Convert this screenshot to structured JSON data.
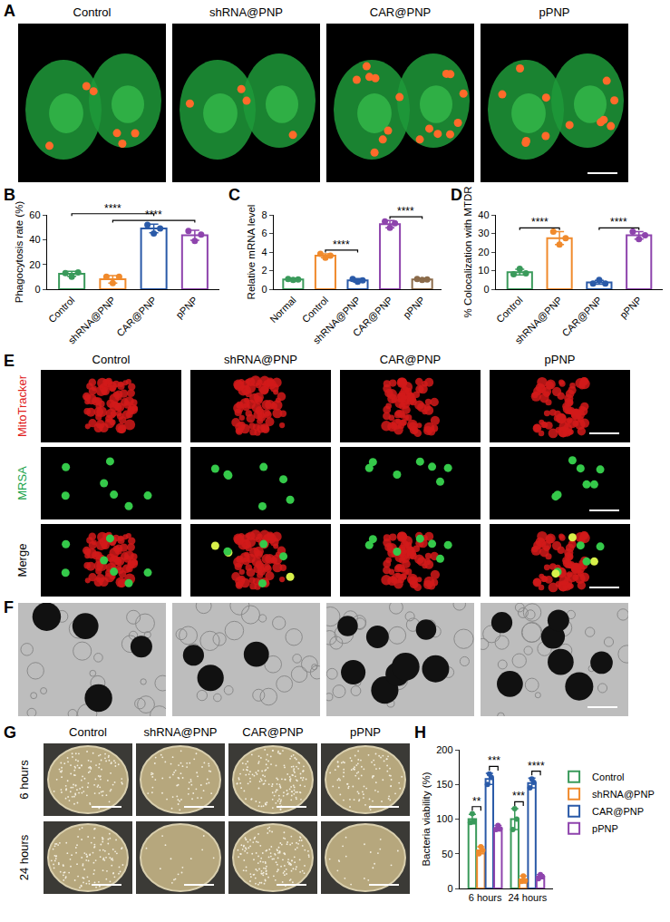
{
  "panels": {
    "A": {
      "letter": "A",
      "columns": [
        "Control",
        "shRNA@PNP",
        "CAR@PNP",
        "pPNP"
      ]
    },
    "E": {
      "letter": "E",
      "columns": [
        "Control",
        "shRNA@PNP",
        "CAR@PNP",
        "pPNP"
      ],
      "rows": [
        {
          "text": "MitoTracker",
          "color": "#e0201b"
        },
        {
          "text": "MRSA",
          "color": "#1aa34a"
        },
        {
          "text": "Merge",
          "color": "#000000"
        }
      ]
    },
    "F": {
      "letter": "F",
      "columns": [
        "Control",
        "shRNA@PNP",
        "CAR@PNP",
        "pPNP"
      ]
    },
    "G": {
      "letter": "G",
      "columns": [
        "Control",
        "shRNA@PNP",
        "CAR@PNP",
        "pPNP"
      ],
      "rows": [
        {
          "text": "6 hours",
          "color": "#000000"
        },
        {
          "text": "24 hours",
          "color": "#000000"
        }
      ]
    }
  },
  "chart_data": [
    {
      "letter": "B",
      "type": "bar",
      "y_label": "Phagocytosis rate (%)",
      "categories": [
        "Control",
        "shRNA@PNP",
        "CAR@PNP",
        "pPNP"
      ],
      "values": [
        12.5,
        8,
        49,
        43.5
      ],
      "errors": [
        2,
        3,
        3.5,
        4
      ],
      "points": [
        [
          13,
          10,
          13.5
        ],
        [
          10,
          5,
          10
        ],
        [
          52,
          45,
          49
        ],
        [
          47,
          39,
          44
        ]
      ],
      "colors": [
        "#3a9a5b",
        "#f08a2c",
        "#2a5aa8",
        "#8e44ad"
      ],
      "ylim": [
        0,
        60
      ],
      "yticks": [
        0,
        20,
        40,
        60
      ],
      "comparisons": [
        {
          "from": 1,
          "to": 3,
          "label": "****"
        },
        {
          "from": 0,
          "to": 2,
          "label": "****"
        }
      ]
    },
    {
      "letter": "C",
      "type": "bar",
      "y_label": "Relative mRNA level",
      "categories": [
        "Normal",
        "Control",
        "shRNA@PNP",
        "CAR@PNP",
        "pPNP"
      ],
      "values": [
        1.05,
        3.6,
        0.95,
        7.0,
        1.05
      ],
      "errors": [
        0.1,
        0.2,
        0.2,
        0.4,
        0.1
      ],
      "points": [
        [
          1.1,
          1.0,
          1.05
        ],
        [
          3.8,
          3.4,
          3.6
        ],
        [
          1.1,
          0.8,
          0.95
        ],
        [
          7.3,
          6.6,
          7.1
        ],
        [
          1.1,
          1.0,
          1.05
        ]
      ],
      "colors": [
        "#3a9a5b",
        "#f08a2c",
        "#2a5aa8",
        "#8e44ad",
        "#8b6b4a"
      ],
      "ylim": [
        0,
        8
      ],
      "yticks": [
        0,
        2,
        4,
        6,
        8
      ],
      "comparisons": [
        {
          "from": 1,
          "to": 2,
          "label": "****"
        },
        {
          "from": 3,
          "to": 4,
          "label": "****"
        }
      ]
    },
    {
      "letter": "D",
      "type": "bar",
      "y_label": "% Colocalization with MTDR",
      "categories": [
        "Control",
        "shRNA@PNP",
        "CAR@PNP",
        "pPNP"
      ],
      "values": [
        9.2,
        27.5,
        3.7,
        29
      ],
      "errors": [
        1.5,
        3.5,
        1,
        2
      ],
      "points": [
        [
          8,
          11,
          8.5
        ],
        [
          31,
          24,
          27.5
        ],
        [
          3,
          5,
          3
        ],
        [
          31,
          27,
          29
        ]
      ],
      "colors": [
        "#3a9a5b",
        "#f08a2c",
        "#2a5aa8",
        "#8e44ad"
      ],
      "ylim": [
        0,
        40
      ],
      "yticks": [
        0,
        10,
        20,
        30,
        40
      ],
      "comparisons": [
        {
          "from": 0,
          "to": 1,
          "label": "****"
        },
        {
          "from": 2,
          "to": 3,
          "label": "****"
        }
      ]
    },
    {
      "letter": "H",
      "type": "bar",
      "y_label": "Bacteria viability (%)",
      "categories": [
        "6 hours",
        "24 hours"
      ],
      "legend": "right",
      "series": [
        {
          "name": "Control",
          "color": "#3a9a5b",
          "values": [
            100,
            100
          ],
          "errors": [
            7,
            15
          ],
          "points": [
            [
              95,
              108,
              97
            ],
            [
              85,
              115,
              100
            ]
          ]
        },
        {
          "name": "shRNA@PNP",
          "color": "#f08a2c",
          "values": [
            55,
            13
          ],
          "errors": [
            5,
            5
          ],
          "points": [
            [
              50,
              60,
              55
            ],
            [
              10,
              18,
              11
            ]
          ]
        },
        {
          "name": "CAR@PNP",
          "color": "#2a5aa8",
          "values": [
            158,
            152
          ],
          "errors": [
            8,
            7
          ],
          "points": [
            [
              150,
              165,
              160
            ],
            [
              145,
              158,
              153
            ]
          ]
        },
        {
          "name": "pPNP",
          "color": "#8e44ad",
          "values": [
            87,
            17
          ],
          "errors": [
            4,
            3
          ],
          "points": [
            [
              85,
              91,
              86
            ],
            [
              14,
              20,
              17
            ]
          ]
        }
      ],
      "ylim": [
        0,
        200
      ],
      "yticks": [
        0,
        50,
        100,
        150,
        200
      ],
      "comparisons": [
        {
          "group": 0,
          "from": 0,
          "to": 1,
          "label": "**"
        },
        {
          "group": 0,
          "from": 2,
          "to": 3,
          "label": "***"
        },
        {
          "group": 1,
          "from": 0,
          "to": 1,
          "label": "***"
        },
        {
          "group": 1,
          "from": 2,
          "to": 3,
          "label": "****"
        }
      ]
    }
  ]
}
